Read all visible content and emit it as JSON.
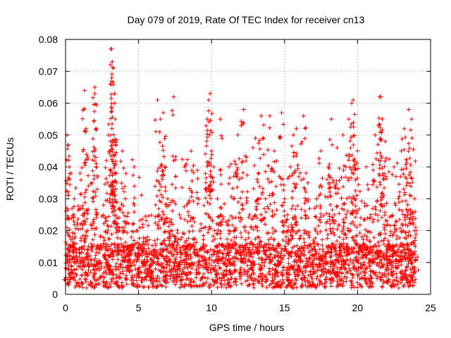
{
  "chart_data": {
    "type": "scatter",
    "title": "Day 079 of 2019, Rate Of TEC Index for receiver cn13",
    "xlabel": "GPS time / hours",
    "ylabel": "ROTI / TECUs",
    "xlim": [
      0,
      25
    ],
    "ylim": [
      0,
      0.08
    ],
    "xticks": [
      0,
      5,
      10,
      15,
      20,
      25
    ],
    "xtick_labels": [
      "0",
      "5",
      "10",
      "15",
      "20",
      "25"
    ],
    "yticks": [
      0,
      0.01,
      0.02,
      0.03,
      0.04,
      0.05,
      0.06,
      0.07,
      0.08
    ],
    "ytick_labels": [
      "0",
      "0.01",
      "0.02",
      "0.03",
      "0.04",
      "0.05",
      "0.06",
      "0.07",
      "0.08"
    ],
    "grid": true,
    "marker": "+",
    "color": "#ff0000",
    "series": [
      {
        "name": "ROTI",
        "x": [
          0.05,
          0.1,
          0.2,
          0.25,
          0.3,
          0.4,
          0.5,
          0.6,
          0.8,
          1.0,
          1.2,
          1.3,
          1.4,
          1.5,
          1.6,
          1.8,
          2.0,
          2.0,
          2.1,
          2.2,
          2.4,
          2.6,
          2.8,
          3.0,
          3.1,
          3.15,
          3.2,
          3.3,
          3.35,
          3.4,
          3.5,
          3.7,
          3.9,
          4.1,
          4.3,
          4.5,
          4.7,
          5.0,
          5.3,
          5.6,
          6.0,
          6.3,
          6.5,
          6.7,
          6.8,
          7.0,
          7.2,
          7.4,
          7.6,
          7.8,
          8.0,
          8.3,
          8.6,
          9.0,
          9.3,
          9.6,
          9.7,
          9.8,
          9.9,
          10.0,
          10.2,
          10.4,
          10.6,
          10.9,
          11.2,
          11.5,
          11.8,
          12.0,
          12.2,
          12.4,
          12.6,
          12.8,
          13.0,
          13.2,
          13.4,
          13.7,
          14.0,
          14.3,
          14.6,
          14.8,
          15.0,
          15.2,
          15.4,
          15.6,
          15.8,
          16.0,
          16.3,
          16.6,
          16.9,
          17.2,
          17.5,
          17.8,
          18.0,
          18.2,
          18.4,
          18.6,
          18.8,
          19.0,
          19.2,
          19.4,
          19.6,
          19.7,
          19.8,
          20.0,
          20.3,
          20.6,
          20.9,
          21.2,
          21.5,
          21.6,
          21.7,
          21.9,
          22.2,
          22.5,
          22.8,
          23.0,
          23.2,
          23.4,
          23.5,
          23.7,
          23.9,
          24.0
        ],
        "y": [
          0.008,
          0.05,
          0.024,
          0.04,
          0.012,
          0.009,
          0.018,
          0.03,
          0.011,
          0.038,
          0.045,
          0.064,
          0.052,
          0.02,
          0.009,
          0.035,
          0.065,
          0.063,
          0.04,
          0.015,
          0.01,
          0.028,
          0.042,
          0.034,
          0.077,
          0.077,
          0.073,
          0.071,
          0.06,
          0.055,
          0.035,
          0.02,
          0.045,
          0.03,
          0.012,
          0.009,
          0.04,
          0.008,
          0.022,
          0.018,
          0.01,
          0.061,
          0.055,
          0.057,
          0.04,
          0.03,
          0.02,
          0.062,
          0.015,
          0.025,
          0.01,
          0.028,
          0.045,
          0.032,
          0.012,
          0.035,
          0.055,
          0.061,
          0.063,
          0.045,
          0.02,
          0.03,
          0.055,
          0.01,
          0.04,
          0.03,
          0.05,
          0.015,
          0.058,
          0.043,
          0.025,
          0.01,
          0.049,
          0.038,
          0.056,
          0.03,
          0.056,
          0.045,
          0.012,
          0.057,
          0.03,
          0.025,
          0.04,
          0.05,
          0.052,
          0.02,
          0.056,
          0.035,
          0.01,
          0.03,
          0.045,
          0.012,
          0.04,
          0.055,
          0.025,
          0.046,
          0.015,
          0.05,
          0.04,
          0.055,
          0.06,
          0.061,
          0.03,
          0.045,
          0.018,
          0.04,
          0.025,
          0.05,
          0.062,
          0.062,
          0.055,
          0.048,
          0.012,
          0.04,
          0.03,
          0.045,
          0.052,
          0.035,
          0.058,
          0.055,
          0.03,
          0.02
        ]
      }
    ],
    "background_band": {
      "description": "dense noise band of ROTI values across the whole day",
      "x_range": [
        0,
        24
      ],
      "y_typical": 0.01,
      "y_min": 0.002,
      "y_upper_envelope": 0.025
    }
  }
}
